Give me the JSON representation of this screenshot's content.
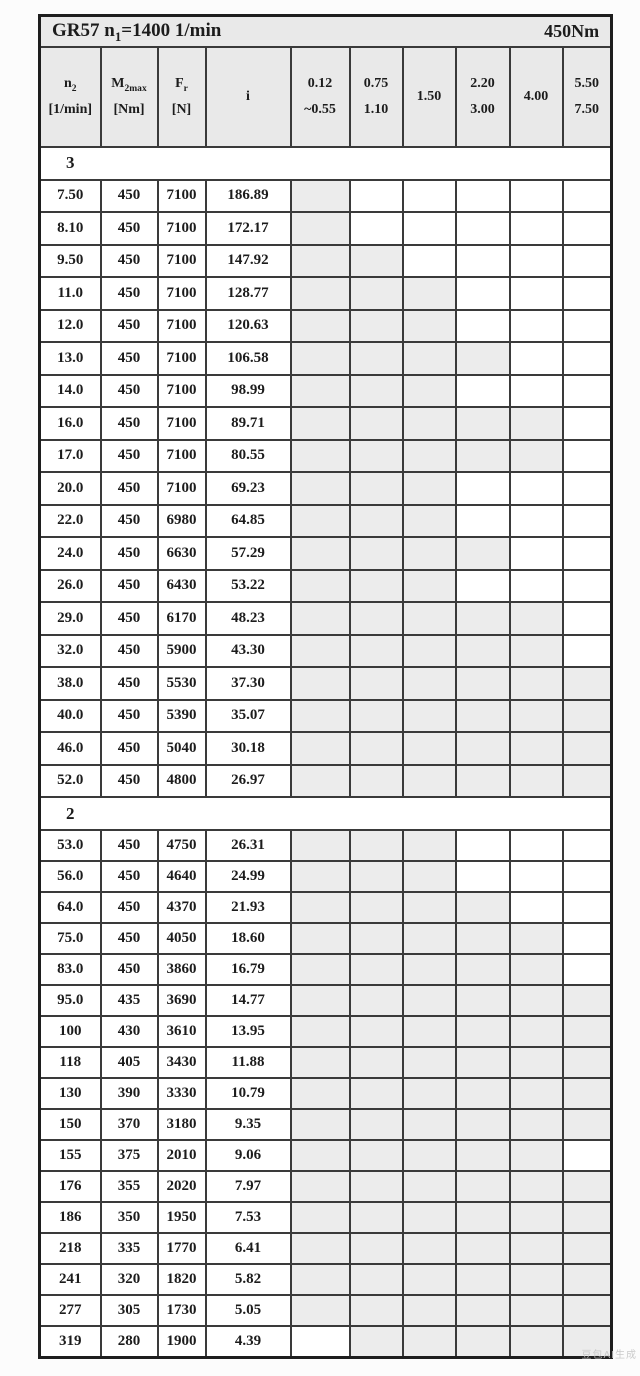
{
  "colors": {
    "page_bg": "#fcfcfc",
    "table_bg": "#ffffff",
    "header_bg": "#e9e9e9",
    "shaded_cell": "#ececec",
    "border": "#3a3a3a",
    "outer_border": "#1e1e1e",
    "text": "#1c1c1c",
    "watermark": "#c6c6c6"
  },
  "title": {
    "left_prefix": "GR57 n",
    "left_sub": "1",
    "left_suffix": "=1400 1/min",
    "right": "450Nm"
  },
  "columns": [
    {
      "name": "n2",
      "line1": "n",
      "sub1": "2",
      "line2": "[1/min]"
    },
    {
      "name": "m2max",
      "line1": "M",
      "sub1": "2max",
      "line2": "[Nm]"
    },
    {
      "name": "fr",
      "line1": "F",
      "sub1": "r",
      "line2": "[N]"
    },
    {
      "name": "i",
      "line1": "i"
    },
    {
      "name": "p-0.12-0.55",
      "line1": "0.12",
      "line2": "~0.55"
    },
    {
      "name": "p-0.75-1.10",
      "line1": "0.75",
      "line2": "1.10"
    },
    {
      "name": "p-1.50",
      "line1": "1.50"
    },
    {
      "name": "p-2.20-3.00",
      "line1": "2.20",
      "line2": "3.00"
    },
    {
      "name": "p-4.00",
      "line1": "4.00"
    },
    {
      "name": "p-5.50-7.50",
      "line1": "5.50",
      "line2": "7.50"
    }
  ],
  "sections": [
    {
      "label": "3",
      "rows": [
        {
          "n2": "7.50",
          "m2max": "450",
          "fr": "7100",
          "i": "186.89",
          "shaded": [
            1,
            0,
            0,
            0,
            0,
            0
          ]
        },
        {
          "n2": "8.10",
          "m2max": "450",
          "fr": "7100",
          "i": "172.17",
          "shaded": [
            1,
            0,
            0,
            0,
            0,
            0
          ]
        },
        {
          "n2": "9.50",
          "m2max": "450",
          "fr": "7100",
          "i": "147.92",
          "shaded": [
            1,
            1,
            0,
            0,
            0,
            0
          ]
        },
        {
          "n2": "11.0",
          "m2max": "450",
          "fr": "7100",
          "i": "128.77",
          "shaded": [
            1,
            1,
            1,
            0,
            0,
            0
          ]
        },
        {
          "n2": "12.0",
          "m2max": "450",
          "fr": "7100",
          "i": "120.63",
          "shaded": [
            1,
            1,
            1,
            0,
            0,
            0
          ]
        },
        {
          "n2": "13.0",
          "m2max": "450",
          "fr": "7100",
          "i": "106.58",
          "shaded": [
            1,
            1,
            1,
            1,
            0,
            0
          ]
        },
        {
          "n2": "14.0",
          "m2max": "450",
          "fr": "7100",
          "i": "98.99",
          "shaded": [
            1,
            1,
            1,
            0,
            0,
            0
          ]
        },
        {
          "n2": "16.0",
          "m2max": "450",
          "fr": "7100",
          "i": "89.71",
          "shaded": [
            1,
            1,
            1,
            1,
            1,
            0
          ]
        },
        {
          "n2": "17.0",
          "m2max": "450",
          "fr": "7100",
          "i": "80.55",
          "shaded": [
            1,
            1,
            1,
            1,
            1,
            0
          ]
        },
        {
          "n2": "20.0",
          "m2max": "450",
          "fr": "7100",
          "i": "69.23",
          "shaded": [
            1,
            1,
            1,
            0,
            0,
            0
          ]
        },
        {
          "n2": "22.0",
          "m2max": "450",
          "fr": "6980",
          "i": "64.85",
          "shaded": [
            1,
            1,
            1,
            0,
            0,
            0
          ]
        },
        {
          "n2": "24.0",
          "m2max": "450",
          "fr": "6630",
          "i": "57.29",
          "shaded": [
            1,
            1,
            1,
            1,
            0,
            0
          ]
        },
        {
          "n2": "26.0",
          "m2max": "450",
          "fr": "6430",
          "i": "53.22",
          "shaded": [
            1,
            1,
            1,
            0,
            0,
            0
          ]
        },
        {
          "n2": "29.0",
          "m2max": "450",
          "fr": "6170",
          "i": "48.23",
          "shaded": [
            1,
            1,
            1,
            1,
            1,
            0
          ]
        },
        {
          "n2": "32.0",
          "m2max": "450",
          "fr": "5900",
          "i": "43.30",
          "shaded": [
            1,
            1,
            1,
            1,
            1,
            0
          ]
        },
        {
          "n2": "38.0",
          "m2max": "450",
          "fr": "5530",
          "i": "37.30",
          "shaded": [
            1,
            1,
            1,
            1,
            1,
            1
          ]
        },
        {
          "n2": "40.0",
          "m2max": "450",
          "fr": "5390",
          "i": "35.07",
          "shaded": [
            1,
            1,
            1,
            1,
            1,
            1
          ]
        },
        {
          "n2": "46.0",
          "m2max": "450",
          "fr": "5040",
          "i": "30.18",
          "shaded": [
            1,
            1,
            1,
            1,
            1,
            1
          ]
        },
        {
          "n2": "52.0",
          "m2max": "450",
          "fr": "4800",
          "i": "26.97",
          "shaded": [
            1,
            1,
            1,
            1,
            1,
            1
          ]
        }
      ]
    },
    {
      "label": "2",
      "rows": [
        {
          "n2": "53.0",
          "m2max": "450",
          "fr": "4750",
          "i": "26.31",
          "shaded": [
            1,
            1,
            1,
            0,
            0,
            0
          ]
        },
        {
          "n2": "56.0",
          "m2max": "450",
          "fr": "4640",
          "i": "24.99",
          "shaded": [
            1,
            1,
            1,
            0,
            0,
            0
          ]
        },
        {
          "n2": "64.0",
          "m2max": "450",
          "fr": "4370",
          "i": "21.93",
          "shaded": [
            1,
            1,
            1,
            1,
            0,
            0
          ]
        },
        {
          "n2": "75.0",
          "m2max": "450",
          "fr": "4050",
          "i": "18.60",
          "shaded": [
            1,
            1,
            1,
            1,
            1,
            0
          ]
        },
        {
          "n2": "83.0",
          "m2max": "450",
          "fr": "3860",
          "i": "16.79",
          "shaded": [
            1,
            1,
            1,
            1,
            1,
            0
          ]
        },
        {
          "n2": "95.0",
          "m2max": "435",
          "fr": "3690",
          "i": "14.77",
          "shaded": [
            1,
            1,
            1,
            1,
            1,
            1
          ]
        },
        {
          "n2": "100",
          "m2max": "430",
          "fr": "3610",
          "i": "13.95",
          "shaded": [
            1,
            1,
            1,
            1,
            1,
            1
          ]
        },
        {
          "n2": "118",
          "m2max": "405",
          "fr": "3430",
          "i": "11.88",
          "shaded": [
            1,
            1,
            1,
            1,
            1,
            1
          ]
        },
        {
          "n2": "130",
          "m2max": "390",
          "fr": "3330",
          "i": "10.79",
          "shaded": [
            1,
            1,
            1,
            1,
            1,
            1
          ]
        },
        {
          "n2": "150",
          "m2max": "370",
          "fr": "3180",
          "i": "9.35",
          "shaded": [
            1,
            1,
            1,
            1,
            1,
            1
          ]
        },
        {
          "n2": "155",
          "m2max": "375",
          "fr": "2010",
          "i": "9.06",
          "shaded": [
            1,
            1,
            1,
            1,
            1,
            0
          ]
        },
        {
          "n2": "176",
          "m2max": "355",
          "fr": "2020",
          "i": "7.97",
          "shaded": [
            1,
            1,
            1,
            1,
            1,
            1
          ]
        },
        {
          "n2": "186",
          "m2max": "350",
          "fr": "1950",
          "i": "7.53",
          "shaded": [
            1,
            1,
            1,
            1,
            1,
            1
          ]
        },
        {
          "n2": "218",
          "m2max": "335",
          "fr": "1770",
          "i": "6.41",
          "shaded": [
            1,
            1,
            1,
            1,
            1,
            1
          ]
        },
        {
          "n2": "241",
          "m2max": "320",
          "fr": "1820",
          "i": "5.82",
          "shaded": [
            1,
            1,
            1,
            1,
            1,
            1
          ]
        },
        {
          "n2": "277",
          "m2max": "305",
          "fr": "1730",
          "i": "5.05",
          "shaded": [
            1,
            1,
            1,
            1,
            1,
            1
          ]
        },
        {
          "n2": "319",
          "m2max": "280",
          "fr": "1900",
          "i": "4.39",
          "shaded": [
            0,
            1,
            1,
            1,
            1,
            1
          ]
        }
      ]
    }
  ],
  "watermark": "豆包AI生成"
}
